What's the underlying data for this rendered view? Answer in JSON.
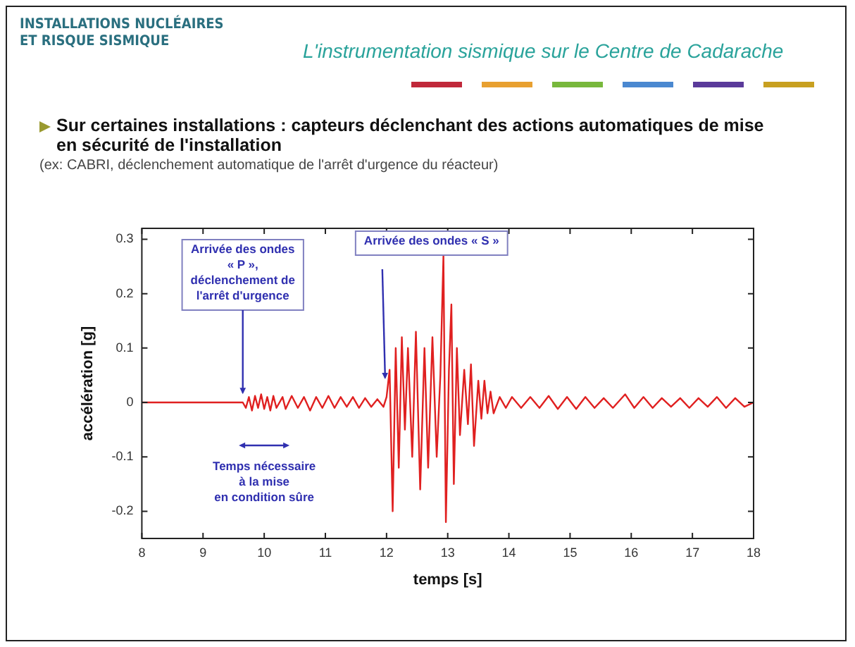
{
  "chart_data": {
    "type": "line",
    "title": "L'instrumentation sismique sur le Centre de Cadarache",
    "subtitle": "Sur certaines installations : capteurs déclenchant des actions automatiques de mise en sécurité de l'installation",
    "xlabel": "temps [s]",
    "ylabel": "accélération [g]",
    "annotations": [
      "INSTALLATIONS NUCLÉAIRES\nET RISQUE SISMIQUE",
      "(ex: CABRI, déclenchement automatique de l'arrêt d'urgence du réacteur)",
      {
        "text": "Arrivée des ondes\n« P »,\ndéclenchement de\nl'arrêt d'urgence",
        "x": 9.65,
        "y": 0.01
      },
      "Arrivée des ondes « S »",
      "Temps nécessaire\nà la mise\nen condition sûre"
    ],
    "x": [
      8,
      9.65,
      9.7,
      9.75,
      9.8,
      9.85,
      9.9,
      9.95,
      10,
      10.05,
      10.1,
      10.15,
      10.2,
      10.3,
      10.35,
      10.45,
      10.55,
      10.65,
      10.75,
      10.85,
      10.95,
      11.05,
      11.15,
      11.25,
      11.35,
      11.45,
      11.55,
      11.65,
      11.75,
      11.85,
      11.95,
      12,
      12.05,
      12.1,
      12.15,
      12.2,
      12.25,
      12.3,
      12.35,
      12.42,
      12.48,
      12.55,
      12.62,
      12.68,
      12.75,
      12.82,
      12.88,
      12.93,
      12.97,
      13.02,
      13.06,
      13.1,
      13.15,
      13.2,
      13.27,
      13.33,
      13.38,
      13.43,
      13.5,
      13.55,
      13.6,
      13.65,
      13.7,
      13.75,
      13.85,
      13.95,
      14.05,
      14.2,
      14.35,
      14.5,
      14.65,
      14.8,
      14.95,
      15.1,
      15.25,
      15.4,
      15.55,
      15.7,
      15.9,
      16.05,
      16.2,
      16.35,
      16.5,
      16.65,
      16.8,
      16.95,
      17.1,
      17.25,
      17.4,
      17.55,
      17.7,
      17.85,
      18
    ],
    "series": [
      {
        "color": "#e02020",
        "values": [
          0,
          0,
          -0.01,
          0.01,
          -0.015,
          0.012,
          -0.01,
          0.015,
          -0.012,
          0.01,
          -0.015,
          0.012,
          -0.01,
          0.01,
          -0.012,
          0.012,
          -0.01,
          0.01,
          -0.015,
          0.01,
          -0.01,
          0.012,
          -0.01,
          0.01,
          -0.008,
          0.01,
          -0.01,
          0.008,
          -0.008,
          0.006,
          -0.008,
          0.01,
          0.06,
          -0.2,
          0.1,
          -0.12,
          0.12,
          -0.05,
          0.1,
          -0.1,
          0.13,
          -0.16,
          0.1,
          -0.12,
          0.12,
          -0.1,
          0.05,
          0.27,
          -0.22,
          0.06,
          0.18,
          -0.15,
          0.1,
          -0.06,
          0.06,
          -0.04,
          0.07,
          -0.08,
          0.04,
          -0.03,
          0.04,
          -0.02,
          0.02,
          -0.02,
          0.01,
          -0.01,
          0.01,
          -0.01,
          0.01,
          -0.01,
          0.012,
          -0.012,
          0.01,
          -0.012,
          0.01,
          -0.01,
          0.008,
          -0.01,
          0.015,
          -0.01,
          0.01,
          -0.01,
          0.008,
          -0.008,
          0.008,
          -0.01,
          0.008,
          -0.008,
          0.01,
          -0.01,
          0.008,
          -0.008,
          0
        ]
      }
    ],
    "xlim": [
      8,
      18
    ],
    "xticks": [
      8,
      9,
      10,
      11,
      12,
      13,
      14,
      15,
      16,
      17,
      18
    ],
    "ylim": [
      -0.25,
      0.32
    ],
    "yticks": [
      -0.2,
      -0.1,
      0,
      0.1,
      0.2,
      0.3
    ]
  }
}
